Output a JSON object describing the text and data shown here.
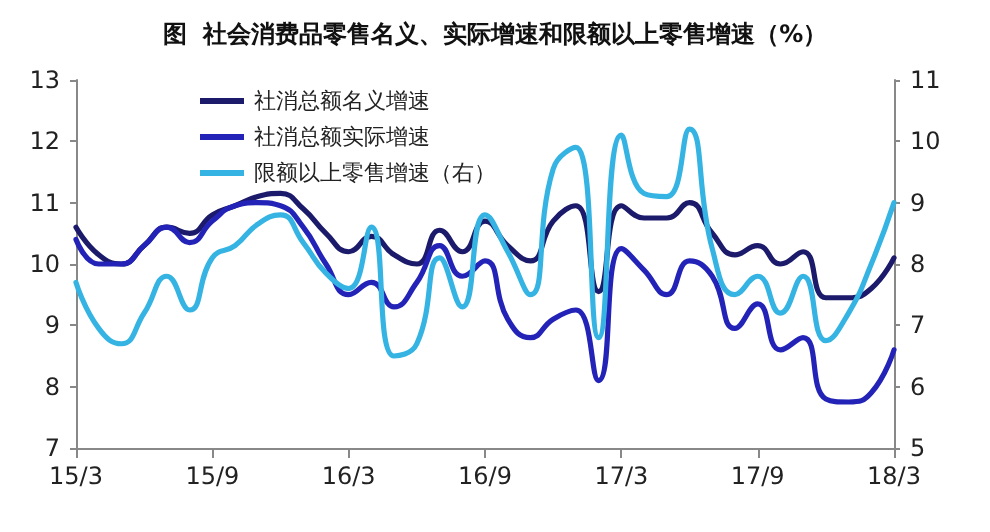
{
  "chart_data": {
    "type": "line",
    "title": "图  社会消费品零售名义、实际增速和限额以上零售增速（%）",
    "categories": [
      "15/3",
      null,
      null,
      null,
      null,
      null,
      "15/9",
      null,
      null,
      null,
      null,
      null,
      "16/3",
      null,
      null,
      null,
      null,
      null,
      "16/9",
      null,
      null,
      null,
      null,
      null,
      "17/3",
      null,
      null,
      null,
      null,
      null,
      "17/9",
      null,
      null,
      null,
      null,
      null,
      "18/3"
    ],
    "series": [
      {
        "name": "社消总额名义增速",
        "color": "#1b1a6b",
        "values": [
          10.6,
          10.15,
          10.0,
          10.3,
          10.6,
          10.5,
          10.8,
          10.95,
          11.1,
          11.15,
          10.9,
          10.5,
          10.2,
          10.45,
          10.15,
          10.0,
          10.55,
          10.2,
          10.7,
          10.3,
          10.05,
          10.7,
          10.95,
          9.55,
          10.95,
          10.75,
          10.75,
          11.0,
          10.5,
          10.15,
          10.3,
          10.0,
          10.2,
          9.45,
          9.45,
          9.6,
          10.1
        ]
      },
      {
        "name": "社消总额实际增速",
        "color": "#2323b8",
        "values": [
          10.4,
          10.0,
          10.0,
          10.3,
          10.6,
          10.35,
          10.7,
          10.95,
          11.0,
          10.95,
          10.6,
          10.0,
          9.5,
          9.7,
          9.3,
          9.7,
          10.3,
          9.8,
          10.05,
          9.1,
          8.8,
          9.1,
          9.25,
          8.1,
          10.25,
          9.9,
          9.5,
          10.05,
          9.8,
          8.95,
          9.35,
          8.6,
          8.8,
          7.8,
          7.75,
          7.9,
          8.6
        ]
      },
      {
        "name": "限额以上零售增速（右）",
        "color": "#35b4e3",
        "axis": "y2",
        "values": [
          7.7,
          6.95,
          6.7,
          7.2,
          7.8,
          7.25,
          8.1,
          8.3,
          8.65,
          8.8,
          8.35,
          7.85,
          7.6,
          8.6,
          6.5,
          6.7,
          8.1,
          7.3,
          8.8,
          8.2,
          7.5,
          9.55,
          9.9,
          6.8,
          10.1,
          9.15,
          9.1,
          10.2,
          8.25,
          7.5,
          7.8,
          7.2,
          7.8,
          6.75,
          7.2,
          8.0,
          9.0
        ]
      }
    ],
    "ylim": [
      7,
      13
    ],
    "yticks": [
      7,
      8,
      9,
      10,
      11,
      12,
      13
    ],
    "y2lim": [
      5,
      11
    ],
    "y2ticks": [
      5,
      6,
      7,
      8,
      9,
      10,
      11
    ],
    "grid": false,
    "legend": "top left",
    "marker": "none",
    "line_style": "solid"
  }
}
